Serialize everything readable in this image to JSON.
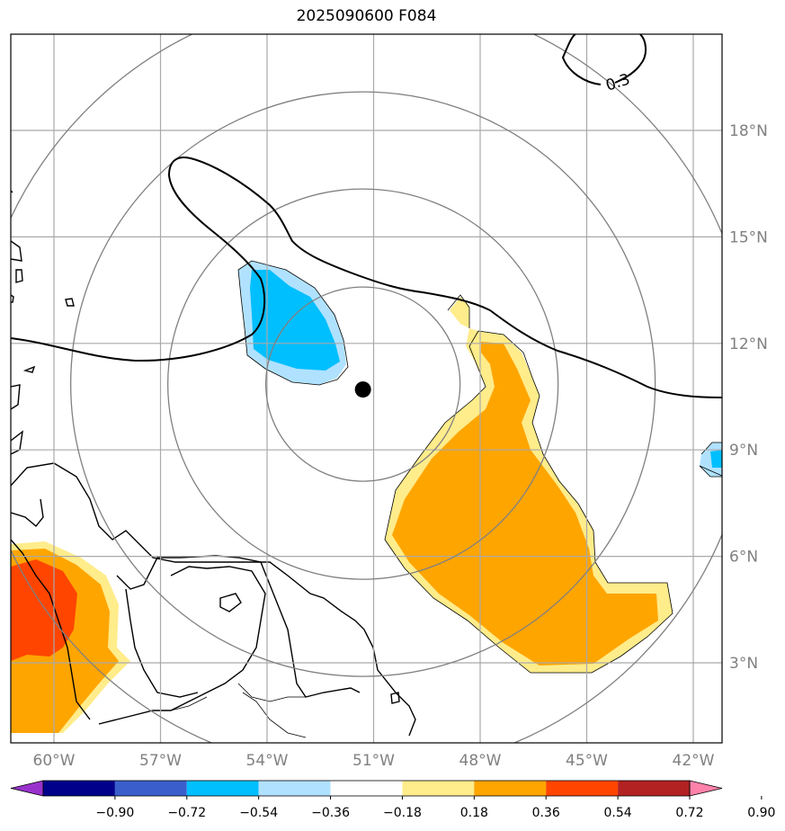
{
  "title": "2025090600 F084",
  "map": {
    "projection": "lat-lon",
    "lon_range": [
      -61.2,
      -41.8
    ],
    "lat_range": [
      0.8,
      20.8
    ],
    "center_marker": {
      "lon": -51.3,
      "lat": 10.7
    },
    "range_rings": "concentric circles around center",
    "lon_ticks": [
      {
        "value": -60,
        "label": "60°W"
      },
      {
        "value": -57,
        "label": "57°W"
      },
      {
        "value": -54,
        "label": "54°W"
      },
      {
        "value": -51,
        "label": "51°W"
      },
      {
        "value": -48,
        "label": "48°W"
      },
      {
        "value": -45,
        "label": "45°W"
      },
      {
        "value": -42,
        "label": "42°W"
      }
    ],
    "lat_ticks": [
      {
        "value": 3,
        "label": "3°N"
      },
      {
        "value": 6,
        "label": "6°N"
      },
      {
        "value": 9,
        "label": "9°N"
      },
      {
        "value": 12,
        "label": "12°N"
      },
      {
        "value": 15,
        "label": "15°N"
      },
      {
        "value": 18,
        "label": "18°N"
      }
    ],
    "contour_label": "0.3"
  },
  "colorbar": {
    "colors": [
      "#9932cc",
      "#00008b",
      "#3a5fcd",
      "#00bfff",
      "#b0e2ff",
      "#ffffff",
      "#ffec8b",
      "#ffa500",
      "#ff4500",
      "#b22222",
      "#ff82ab"
    ],
    "tick_labels": [
      "−0.90",
      "−0.72",
      "−0.54",
      "−0.36",
      "−0.18",
      "0.18",
      "0.36",
      "0.54",
      "0.72",
      "0.90"
    ]
  },
  "colors": {
    "light_blue": "#b0e2ff",
    "deep_sky_blue": "#00bfff",
    "light_yellow": "#ffec8b",
    "orange": "#ffa500",
    "orange_red": "#ff4500",
    "grid": "#a9a9a9",
    "ring": "#808080"
  }
}
